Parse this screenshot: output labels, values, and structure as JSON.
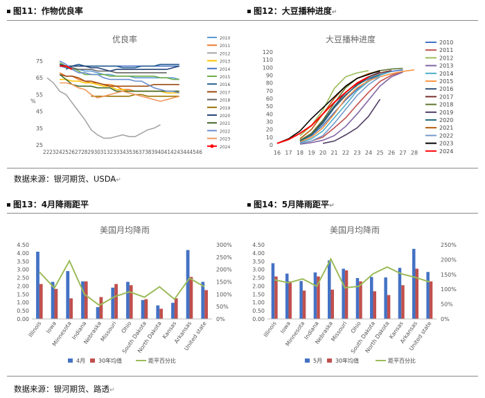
{
  "figures": {
    "fig11": {
      "title": "图11：作物优良率"
    },
    "fig12": {
      "title": "图12：大豆播种进度"
    },
    "fig13": {
      "title": "图13：4月降雨距平"
    },
    "fig14": {
      "title": "图14：5月降雨距平"
    }
  },
  "sources": {
    "top": "数据来源：银河期货、USDA",
    "bottom": "数据来源：银河期货、路透"
  },
  "colors": {
    "primary_bar": "#4472C4",
    "secondary_bar": "#C0504D",
    "pct_line": "#9BBB59"
  },
  "chart_data": [
    {
      "id": "fig11",
      "type": "line",
      "title": "优良率",
      "ylabel": "%",
      "ylim": [
        25,
        75
      ],
      "yticks": [
        25,
        35,
        45,
        55,
        65,
        75
      ],
      "x": [
        22,
        23,
        24,
        25,
        26,
        27,
        28,
        29,
        30,
        31,
        32,
        33,
        34,
        35,
        36,
        37,
        38,
        39,
        40,
        41,
        42,
        43,
        44,
        45,
        46
      ],
      "x_tick_text": "22232425262728293031323334353637383940414243444546",
      "legend_position": "right",
      "series": [
        {
          "name": "2010",
          "color": "#5B9BD5",
          "values": [
            null,
            null,
            72,
            71,
            70,
            70,
            69,
            69,
            68,
            67,
            67,
            66,
            66,
            66,
            65,
            65,
            65,
            65,
            65,
            65,
            65,
            64,
            null,
            null,
            null
          ]
        },
        {
          "name": "2011",
          "color": "#ED7D31",
          "values": [
            null,
            null,
            68,
            66,
            66,
            64,
            63,
            62,
            62,
            61,
            61,
            60,
            58,
            58,
            57,
            57,
            57,
            57,
            57,
            57,
            57,
            57,
            null,
            null,
            null
          ]
        },
        {
          "name": "2012",
          "color": "#A5A5A5",
          "values": [
            65,
            62,
            57,
            55,
            50,
            45,
            40,
            34,
            31,
            29,
            29,
            30,
            31,
            30,
            30,
            32,
            34,
            35,
            37,
            null,
            null,
            null,
            null,
            null,
            null
          ]
        },
        {
          "name": "2013",
          "color": "#FFC000",
          "values": [
            null,
            null,
            64,
            64,
            63,
            63,
            62,
            62,
            61,
            60,
            60,
            58,
            58,
            57,
            57,
            57,
            57,
            57,
            57,
            56,
            56,
            56,
            null,
            null,
            null
          ]
        },
        {
          "name": "2014",
          "color": "#4472C4",
          "values": [
            null,
            null,
            72,
            72,
            72,
            72,
            72,
            72,
            72,
            72,
            72,
            72,
            72,
            72,
            72,
            72,
            72,
            72,
            72,
            72,
            72,
            72,
            null,
            null,
            null
          ]
        },
        {
          "name": "2015",
          "color": "#70AD47",
          "values": [
            null,
            null,
            74,
            72,
            71,
            69,
            67,
            67,
            67,
            67,
            66,
            66,
            66,
            66,
            66,
            66,
            66,
            66,
            65,
            65,
            64,
            64,
            null,
            null,
            null
          ]
        },
        {
          "name": "2016",
          "color": "#255E91",
          "values": [
            null,
            null,
            null,
            70,
            72,
            73,
            72,
            72,
            72,
            72,
            72,
            72,
            71,
            71,
            71,
            72,
            72,
            72,
            73,
            73,
            73,
            73,
            null,
            null,
            null
          ]
        },
        {
          "name": "2017",
          "color": "#9E480E",
          "values": [
            null,
            null,
            67,
            66,
            66,
            65,
            63,
            63,
            62,
            61,
            60,
            60,
            60,
            60,
            60,
            60,
            60,
            61,
            61,
            61,
            61,
            61,
            null,
            null,
            null
          ]
        },
        {
          "name": "2018",
          "color": "#636363",
          "values": [
            null,
            null,
            73,
            71,
            71,
            70,
            70,
            70,
            69,
            69,
            69,
            68,
            68,
            68,
            68,
            68,
            68,
            68,
            68,
            68,
            null,
            null,
            null,
            null,
            null
          ]
        },
        {
          "name": "2019",
          "color": "#997300",
          "values": [
            null,
            null,
            null,
            null,
            null,
            null,
            null,
            54,
            54,
            54,
            54,
            54,
            54,
            54,
            55,
            55,
            54,
            54,
            54,
            54,
            54,
            54,
            null,
            null,
            null
          ]
        },
        {
          "name": "2020",
          "color": "#264478",
          "values": [
            null,
            null,
            73,
            72,
            72,
            72,
            72,
            71,
            71,
            70,
            69,
            70,
            70,
            70,
            70,
            70,
            70,
            70,
            70,
            70,
            71,
            72,
            null,
            null,
            null
          ]
        },
        {
          "name": "2021",
          "color": "#43682B",
          "values": [
            null,
            null,
            67,
            64,
            61,
            60,
            60,
            60,
            59,
            59,
            59,
            57,
            57,
            57,
            57,
            57,
            57,
            57,
            57,
            57,
            57,
            57,
            null,
            null,
            null
          ]
        },
        {
          "name": "2022",
          "color": "#698ED0",
          "values": [
            null,
            null,
            75,
            73,
            70,
            68,
            68,
            67,
            67,
            65,
            64,
            64,
            64,
            64,
            63,
            63,
            61,
            59,
            58,
            57,
            57,
            56,
            null,
            null,
            null
          ]
        },
        {
          "name": "2023",
          "color": "#F1975A",
          "values": [
            null,
            null,
            62,
            62,
            61,
            59,
            58,
            55,
            53,
            54,
            55,
            56,
            57,
            56,
            55,
            54,
            53,
            52,
            51,
            52,
            53,
            54,
            null,
            null,
            null
          ]
        },
        {
          "name": "2024",
          "color": "#FF0000",
          "values": [
            null,
            null,
            72,
            72,
            70,
            null,
            null,
            null,
            null,
            null,
            null,
            null,
            null,
            null,
            null,
            null,
            null,
            null,
            null,
            null,
            null,
            null,
            null,
            null,
            null
          ]
        }
      ]
    },
    {
      "id": "fig12",
      "type": "line",
      "title": "大豆播种进度",
      "ylim": [
        0,
        120
      ],
      "yticks": [
        0,
        10,
        20,
        30,
        40,
        50,
        60,
        70,
        80,
        90,
        100,
        110,
        120
      ],
      "x": [
        16,
        17,
        18,
        19,
        20,
        21,
        22,
        23,
        24,
        25,
        26,
        27,
        28
      ],
      "legend_position": "right",
      "series": [
        {
          "name": "2010",
          "color": "#4472C4",
          "values": [
            null,
            null,
            5,
            12,
            25,
            42,
            58,
            72,
            84,
            91,
            95,
            97,
            null
          ]
        },
        {
          "name": "2011",
          "color": "#C0504D",
          "values": [
            null,
            null,
            2,
            5,
            10,
            22,
            35,
            52,
            68,
            82,
            90,
            95,
            null
          ]
        },
        {
          "name": "2012",
          "color": "#9BBB59",
          "values": [
            null,
            null,
            12,
            25,
            45,
            73,
            88,
            93,
            96,
            null,
            null,
            null,
            null
          ]
        },
        {
          "name": "2013",
          "color": "#8064A2",
          "values": [
            null,
            null,
            1,
            3,
            6,
            12,
            24,
            40,
            58,
            76,
            88,
            94,
            null
          ]
        },
        {
          "name": "2014",
          "color": "#4BACC6",
          "values": [
            null,
            null,
            3,
            8,
            18,
            35,
            52,
            70,
            82,
            90,
            95,
            null,
            null
          ]
        },
        {
          "name": "2015",
          "color": "#F79646",
          "values": [
            null,
            null,
            4,
            10,
            22,
            40,
            60,
            74,
            83,
            88,
            92,
            95,
            97
          ]
        },
        {
          "name": "2016",
          "color": "#2C4D75",
          "values": [
            null,
            null,
            6,
            14,
            30,
            50,
            68,
            80,
            88,
            94,
            null,
            null,
            null
          ]
        },
        {
          "name": "2017",
          "color": "#772C2A",
          "values": [
            null,
            null,
            6,
            14,
            28,
            48,
            64,
            78,
            88,
            93,
            96,
            null,
            null
          ]
        },
        {
          "name": "2018",
          "color": "#5F7530",
          "values": [
            null,
            null,
            6,
            15,
            32,
            54,
            74,
            86,
            92,
            96,
            98,
            99,
            null
          ]
        },
        {
          "name": "2019",
          "color": "#4D3B62",
          "values": [
            null,
            null,
            null,
            null,
            2,
            5,
            13,
            22,
            37,
            59,
            null,
            null,
            null
          ]
        },
        {
          "name": "2020",
          "color": "#276A7C",
          "values": [
            null,
            null,
            5,
            13,
            28,
            48,
            65,
            77,
            86,
            91,
            null,
            null,
            null
          ]
        },
        {
          "name": "2021",
          "color": "#B65708",
          "values": [
            null,
            null,
            8,
            20,
            40,
            60,
            76,
            86,
            92,
            95,
            null,
            null,
            null
          ]
        },
        {
          "name": "2022",
          "color": "#729ACA",
          "values": [
            null,
            null,
            2,
            5,
            12,
            28,
            46,
            64,
            78,
            88,
            null,
            null,
            null
          ]
        },
        {
          "name": "2023",
          "color": "#000000",
          "values": [
            2,
            8,
            18,
            34,
            48,
            62,
            76,
            86,
            91,
            96,
            null,
            null,
            null
          ]
        },
        {
          "name": "2024",
          "color": "#FF0000",
          "values": [
            2,
            7,
            15,
            25,
            40,
            55,
            68,
            80,
            88,
            null,
            null,
            null,
            null
          ]
        }
      ]
    },
    {
      "id": "fig13",
      "type": "bar",
      "title": "美国月均降雨",
      "categories": [
        "Illinois",
        "Iowa",
        "Minnesota",
        "Indiana",
        "Nebraska",
        "Missouri",
        "Ohio",
        "South Dakota",
        "North Dakota",
        "Kansas",
        "Arkansas",
        "United state"
      ],
      "ylim": [
        0,
        4.5
      ],
      "yticks": [
        "0.00",
        "0.50",
        "1.00",
        "1.50",
        "2.00",
        "2.50",
        "3.00",
        "3.50",
        "4.00",
        "4.50"
      ],
      "y2lim": [
        0,
        3
      ],
      "y2ticks": [
        "0%",
        "50%",
        "100%",
        "150%",
        "200%",
        "250%",
        "300%"
      ],
      "legend_position": "bottom",
      "series": [
        {
          "name": "4月",
          "kind": "bar",
          "axis": "left",
          "color": "#4472C4",
          "values": [
            4.08,
            2.25,
            2.9,
            2.28,
            0.72,
            1.9,
            2.25,
            1.15,
            0.82,
            0.98,
            4.18,
            2.25
          ]
        },
        {
          "name": "30年均值",
          "kind": "bar",
          "axis": "left",
          "color": "#C0504D",
          "values": [
            2.12,
            1.82,
            1.25,
            2.28,
            1.33,
            2.12,
            2.05,
            1.2,
            0.62,
            1.25,
            2.55,
            1.75
          ]
        },
        {
          "name": "距平百分比",
          "kind": "line",
          "axis": "right",
          "color": "#9BBB59",
          "values": [
            1.9,
            1.25,
            2.35,
            1.0,
            0.55,
            0.9,
            1.1,
            0.88,
            1.3,
            0.8,
            1.65,
            1.3
          ]
        }
      ]
    },
    {
      "id": "fig14",
      "type": "bar",
      "title": "美国月均降雨",
      "categories": [
        "Illinois",
        "Iowa",
        "Minnesota",
        "Indiana",
        "Nebraska",
        "Missouri",
        "Ohio",
        "South Dakota",
        "North Dakota",
        "Kansas",
        "Arkansas",
        "United state"
      ],
      "ylim": [
        0,
        4.5
      ],
      "yticks": [
        "0.00",
        "0.50",
        "1.00",
        "1.50",
        "2.00",
        "2.50",
        "3.00",
        "3.50",
        "4.00",
        "4.50"
      ],
      "y2lim": [
        0,
        2.5
      ],
      "y2ticks": [
        "0%",
        "50%",
        "100%",
        "150%",
        "200%",
        "250%"
      ],
      "legend_position": "bottom",
      "series": [
        {
          "name": "5月",
          "kind": "bar",
          "axis": "left",
          "color": "#4472C4",
          "values": [
            3.38,
            2.75,
            2.3,
            2.82,
            3.55,
            3.05,
            2.48,
            2.55,
            2.52,
            3.1,
            4.25,
            2.85
          ]
        },
        {
          "name": "30年均值",
          "kind": "bar",
          "axis": "left",
          "color": "#C0504D",
          "values": [
            2.58,
            2.28,
            1.72,
            2.58,
            1.78,
            2.95,
            2.28,
            1.68,
            1.45,
            2.05,
            3.05,
            2.28
          ]
        },
        {
          "name": "距平百分比",
          "kind": "line",
          "axis": "right",
          "color": "#9BBB59",
          "values": [
            1.32,
            1.22,
            1.35,
            1.1,
            2.02,
            1.05,
            1.1,
            1.52,
            1.75,
            1.52,
            1.4,
            1.25
          ]
        }
      ]
    }
  ]
}
